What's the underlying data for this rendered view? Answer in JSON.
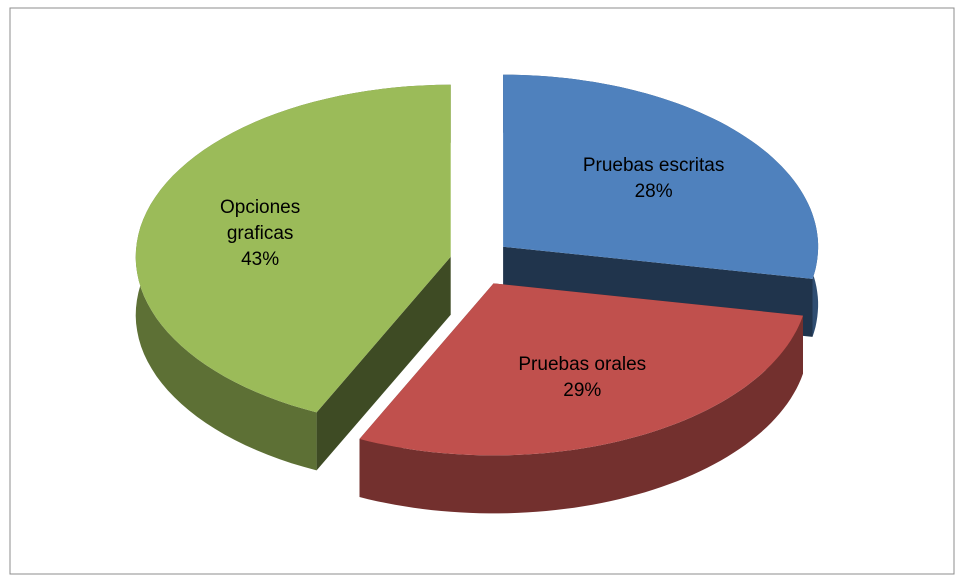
{
  "chart_data": {
    "type": "pie",
    "categories": [
      "Pruebas escritas",
      "Pruebas orales",
      "Opciones graficas"
    ],
    "values": [
      28,
      29,
      43
    ],
    "value_labels": [
      "28%",
      "29%",
      "43%"
    ],
    "colors": [
      "#4f81bd",
      "#c0504d",
      "#9bbb59"
    ]
  }
}
